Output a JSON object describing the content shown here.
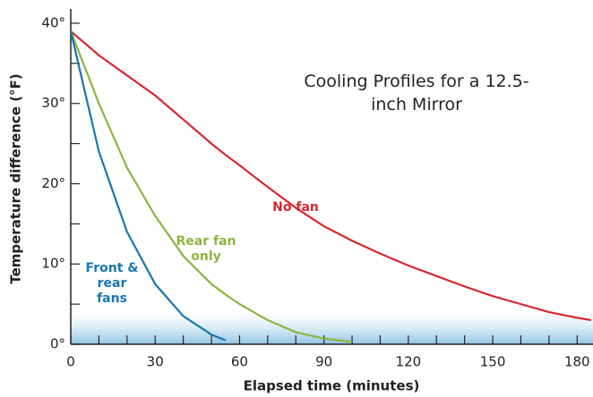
{
  "chart_data": {
    "type": "line",
    "title": "Cooling Profiles for a 12.5-inch Mirror",
    "xlabel": "Elapsed time (minutes)",
    "ylabel": "Temperature difference (°F)",
    "x": [
      0,
      10,
      20,
      30,
      40,
      50,
      55,
      60,
      70,
      80,
      90,
      100,
      110,
      120,
      130,
      140,
      150,
      160,
      170,
      180,
      185
    ],
    "series": [
      {
        "name": "No fan",
        "color": "#d7282f",
        "values": [
          39,
          36,
          33.5,
          31,
          28,
          25,
          23.6,
          22.3,
          19.6,
          17,
          14.7,
          12.9,
          11.3,
          9.8,
          8.5,
          7.2,
          6,
          5,
          4,
          3.3,
          3
        ]
      },
      {
        "name": "Rear fan only",
        "color": "#8cb53f",
        "values": [
          39,
          30,
          22,
          16,
          11,
          7.5,
          6.2,
          5,
          3,
          1.5,
          0.7,
          0.3,
          null,
          null,
          null,
          null,
          null,
          null,
          null,
          null,
          null
        ]
      },
      {
        "name": "Front & rear fans",
        "color": "#1a75b0",
        "values": [
          39,
          24,
          14,
          7.5,
          3.5,
          1.2,
          0.5,
          null,
          null,
          null,
          null,
          null,
          null,
          null,
          null,
          null,
          null,
          null,
          null,
          null,
          null
        ]
      }
    ],
    "xlim": [
      0,
      185
    ],
    "ylim": [
      0,
      41
    ],
    "xticks": [
      0,
      30,
      60,
      90,
      120,
      150,
      180
    ],
    "xminorticks": [
      10,
      20,
      40,
      50,
      70,
      80,
      100,
      110,
      130,
      140,
      160,
      170
    ],
    "yticks": [
      {
        "value": 0,
        "label": "0°"
      },
      {
        "value": 10,
        "label": "10°"
      },
      {
        "value": 20,
        "label": "20°"
      },
      {
        "value": 30,
        "label": "30°"
      },
      {
        "value": 40,
        "label": "40°"
      }
    ],
    "yminorticks": [
      5,
      15,
      25,
      35
    ]
  }
}
